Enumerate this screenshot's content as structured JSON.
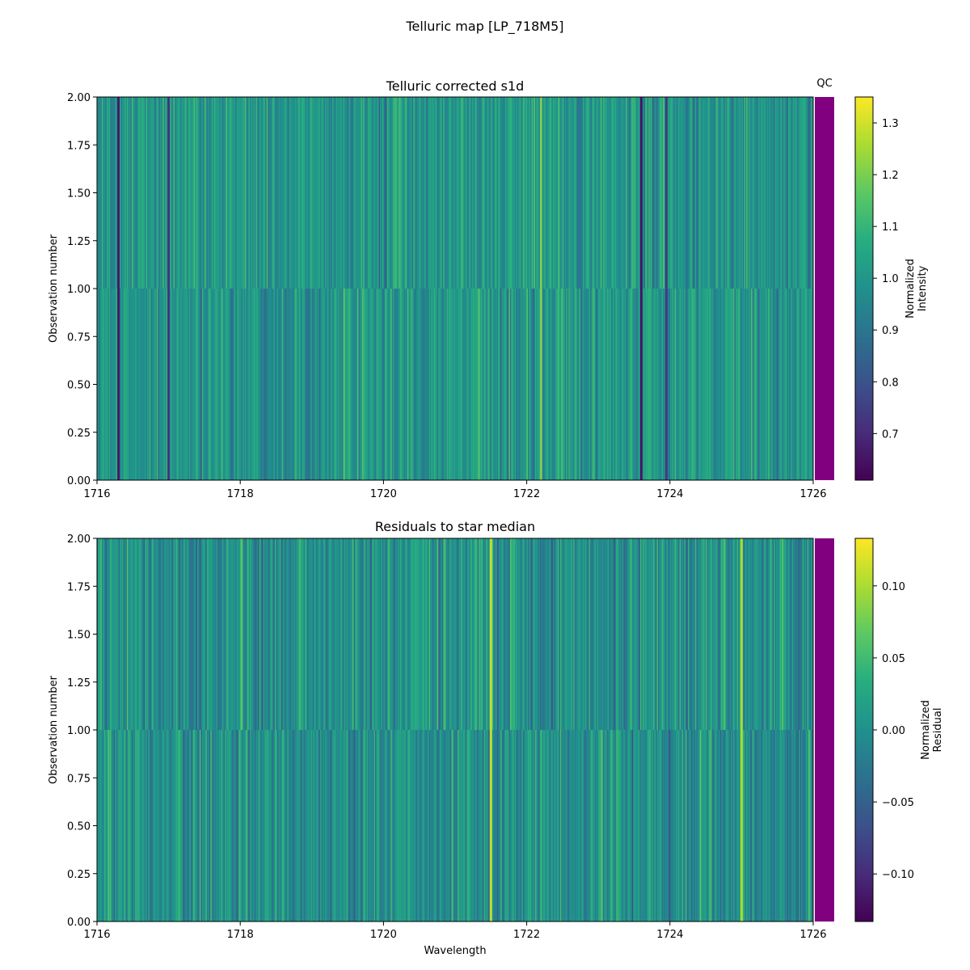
{
  "figure": {
    "title": "Telluric map [LP_718M5]"
  },
  "chart_data": [
    {
      "type": "heatmap",
      "title": "Telluric corrected s1d",
      "xlabel": "",
      "ylabel": "Observation number",
      "xlim": [
        1716,
        1726
      ],
      "ylim": [
        0,
        2
      ],
      "xticks": [
        "1716",
        "1718",
        "1720",
        "1722",
        "1724",
        "1726"
      ],
      "yticks": [
        "0.00",
        "0.25",
        "0.50",
        "0.75",
        "1.00",
        "1.25",
        "1.50",
        "1.75",
        "2.00"
      ],
      "rows": [
        {
          "observation": 0,
          "y_range": [
            0,
            1
          ]
        },
        {
          "observation": 1,
          "y_range": [
            1,
            2
          ]
        }
      ],
      "colormap": "viridis",
      "colorbar": {
        "label_line1": "Normalized",
        "label_line2": "Intensity",
        "range": [
          0.61,
          1.35
        ],
        "ticks": [
          "0.7",
          "0.8",
          "0.9",
          "1.0",
          "1.1",
          "1.2",
          "1.3"
        ],
        "tick_values": [
          0.7,
          0.8,
          0.9,
          1.0,
          1.1,
          1.2,
          1.3
        ]
      },
      "qc": {
        "label": "QC",
        "color": "#800080"
      },
      "notable_features": [
        {
          "wavelength": 1716.3,
          "value": 0.66
        },
        {
          "wavelength": 1717.0,
          "value": 0.72
        },
        {
          "wavelength": 1722.2,
          "value": 1.2
        },
        {
          "wavelength": 1723.6,
          "value": 0.65
        },
        {
          "wavelength": 1723.95,
          "value": 0.74
        }
      ]
    },
    {
      "type": "heatmap",
      "title": "Residuals to star median",
      "xlabel": "Wavelength",
      "ylabel": "Observation number",
      "xlim": [
        1716,
        1726
      ],
      "ylim": [
        0,
        2
      ],
      "xticks": [
        "1716",
        "1718",
        "1720",
        "1722",
        "1724",
        "1726"
      ],
      "yticks": [
        "0.00",
        "0.25",
        "0.50",
        "0.75",
        "1.00",
        "1.25",
        "1.50",
        "1.75",
        "2.00"
      ],
      "rows": [
        {
          "observation": 0,
          "y_range": [
            0,
            1
          ]
        },
        {
          "observation": 1,
          "y_range": [
            1,
            2
          ]
        }
      ],
      "colormap": "viridis",
      "colorbar": {
        "label_line1": "Normalized",
        "label_line2": "Residual",
        "range": [
          -0.133,
          0.133
        ],
        "ticks": [
          "−0.10",
          "−0.05",
          "0.00",
          "0.05",
          "0.10"
        ],
        "tick_values": [
          -0.1,
          -0.05,
          0.0,
          0.05,
          0.1
        ]
      },
      "qc": {
        "label": "",
        "color": "#800080"
      },
      "notable_features": [
        {
          "wavelength": 1721.5,
          "value": 0.11
        },
        {
          "wavelength": 1725.0,
          "value": 0.1
        }
      ]
    }
  ]
}
